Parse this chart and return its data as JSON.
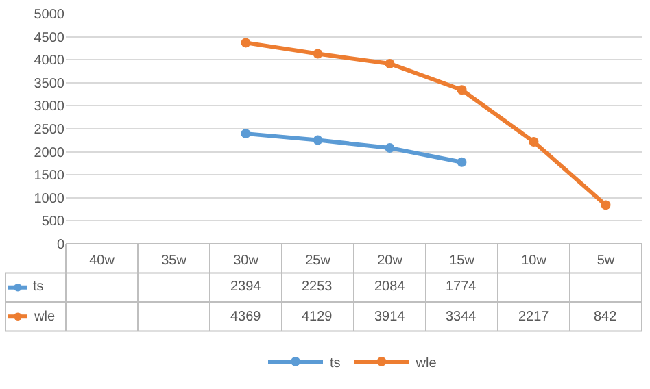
{
  "chart_data": {
    "type": "line",
    "categories": [
      "40w",
      "35w",
      "30w",
      "25w",
      "20w",
      "15w",
      "10w",
      "5w"
    ],
    "series": [
      {
        "name": "ts",
        "color": "#5b9bd5",
        "values": [
          null,
          null,
          2394,
          2253,
          2084,
          1774,
          null,
          null
        ]
      },
      {
        "name": "wle",
        "color": "#ed7d31",
        "values": [
          null,
          null,
          4369,
          4129,
          3914,
          3344,
          2217,
          842
        ]
      }
    ],
    "ylim": [
      0,
      5000
    ],
    "yticks": [
      0,
      500,
      1000,
      1500,
      2000,
      2500,
      3000,
      3500,
      4000,
      4500,
      5000
    ],
    "grid": "y",
    "legend": "bottom",
    "marker": "circle",
    "line_style": "solid",
    "data_labels": true
  }
}
